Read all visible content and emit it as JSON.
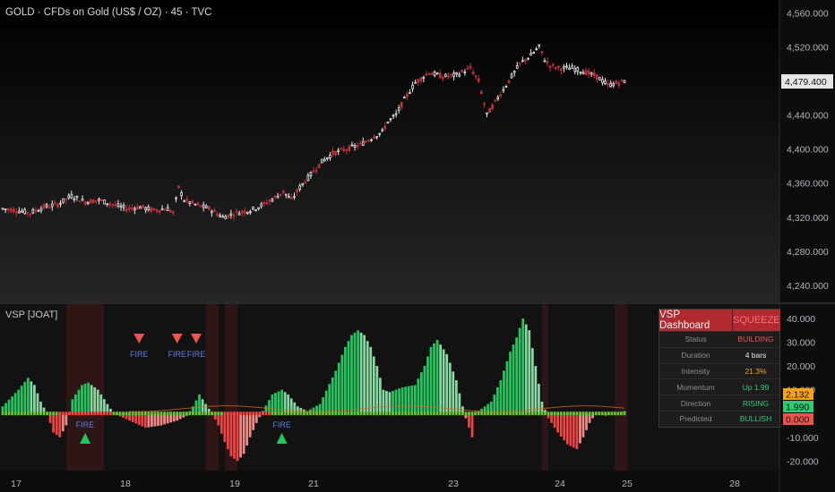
{
  "main_title": "GOLD · CFDs on Gold (US$ / OZ) · 45 · TVC",
  "indicator_title": "VSP [JOAT]",
  "colors": {
    "up": "#e8e8e8",
    "down": "#c0303a",
    "hist_pos": "#2ecc71",
    "hist_neg": "#ef5350",
    "squeeze": "#b02a2f",
    "fire_text": "#5e7be6"
  },
  "chart_data": [
    {
      "type": "candlestick",
      "title": "GOLD · CFDs on Gold (US$ / OZ) · 45 · TVC",
      "ylim": [
        4220,
        4575
      ],
      "y_ticks": [
        "4,560.000",
        "4,520.000",
        "4,479.400",
        "4,440.000",
        "4,400.000",
        "4,360.000",
        "4,320.000",
        "4,280.000",
        "4,240.000"
      ],
      "last_price": "4,479.400",
      "x_ticks": [
        "17",
        "18",
        "19",
        "21",
        "23",
        "24",
        "25",
        "28"
      ],
      "anchors": [
        [
          0,
          4330
        ],
        [
          5,
          4328
        ],
        [
          10,
          4325
        ],
        [
          15,
          4332
        ],
        [
          20,
          4335
        ],
        [
          25,
          4345
        ],
        [
          30,
          4338
        ],
        [
          35,
          4340
        ],
        [
          40,
          4335
        ],
        [
          45,
          4330
        ],
        [
          50,
          4332
        ],
        [
          55,
          4328
        ],
        [
          60,
          4330
        ],
        [
          62,
          4325
        ],
        [
          64,
          4355
        ],
        [
          66,
          4340
        ],
        [
          70,
          4335
        ],
        [
          75,
          4330
        ],
        [
          80,
          4320
        ],
        [
          85,
          4325
        ],
        [
          90,
          4328
        ],
        [
          95,
          4335
        ],
        [
          100,
          4345
        ],
        [
          102,
          4350
        ],
        [
          105,
          4340
        ],
        [
          108,
          4355
        ],
        [
          112,
          4370
        ],
        [
          116,
          4385
        ],
        [
          120,
          4395
        ],
        [
          125,
          4400
        ],
        [
          130,
          4405
        ],
        [
          135,
          4415
        ],
        [
          138,
          4420
        ],
        [
          140,
          4432
        ],
        [
          143,
          4440
        ],
        [
          146,
          4458
        ],
        [
          150,
          4478
        ],
        [
          155,
          4490
        ],
        [
          160,
          4485
        ],
        [
          165,
          4487
        ],
        [
          170,
          4495
        ],
        [
          173,
          4480
        ],
        [
          176,
          4440
        ],
        [
          180,
          4460
        ],
        [
          184,
          4480
        ],
        [
          188,
          4500
        ],
        [
          192,
          4510
        ],
        [
          195,
          4520
        ],
        [
          197,
          4505
        ],
        [
          199,
          4498
        ],
        [
          202,
          4495
        ],
        [
          207,
          4495
        ],
        [
          212,
          4490
        ],
        [
          216,
          4485
        ],
        [
          220,
          4475
        ],
        [
          224,
          4478
        ],
        [
          226,
          4480
        ]
      ],
      "n_bars": 227
    },
    {
      "type": "bar",
      "title": "VSP [JOAT]",
      "ylim": [
        -24,
        46
      ],
      "y_ticks": [
        "40.000",
        "30.000",
        "20.000",
        "10.000",
        "-10.000",
        "-20.000"
      ],
      "value_labels": [
        {
          "text": "2.132",
          "color": "#f7a21b",
          "value": 2.132
        },
        {
          "text": "1.990",
          "color": "#2ecc71",
          "value": 1.99
        },
        {
          "text": "0.000",
          "color": "#ef5350",
          "value": 0
        }
      ],
      "anchors": [
        [
          0,
          3
        ],
        [
          5,
          10
        ],
        [
          8,
          15
        ],
        [
          10,
          12
        ],
        [
          12,
          5
        ],
        [
          14,
          0
        ],
        [
          16,
          -8
        ],
        [
          18,
          -10
        ],
        [
          20,
          -5
        ],
        [
          22,
          6
        ],
        [
          25,
          12
        ],
        [
          27,
          13
        ],
        [
          30,
          10
        ],
        [
          33,
          4
        ],
        [
          35,
          0
        ],
        [
          40,
          -3
        ],
        [
          45,
          -6
        ],
        [
          50,
          -5
        ],
        [
          55,
          -3
        ],
        [
          58,
          -1
        ],
        [
          60,
          3
        ],
        [
          62,
          8
        ],
        [
          64,
          4
        ],
        [
          66,
          0
        ],
        [
          68,
          -5
        ],
        [
          70,
          -12
        ],
        [
          72,
          -18
        ],
        [
          74,
          -20
        ],
        [
          76,
          -17
        ],
        [
          78,
          -10
        ],
        [
          80,
          -4
        ],
        [
          82,
          1
        ],
        [
          85,
          8
        ],
        [
          88,
          10
        ],
        [
          90,
          8
        ],
        [
          93,
          3
        ],
        [
          96,
          1
        ],
        [
          100,
          4
        ],
        [
          105,
          18
        ],
        [
          108,
          28
        ],
        [
          110,
          33
        ],
        [
          112,
          35
        ],
        [
          114,
          33
        ],
        [
          116,
          28
        ],
        [
          118,
          20
        ],
        [
          120,
          10
        ],
        [
          122,
          9
        ],
        [
          126,
          11
        ],
        [
          130,
          12
        ],
        [
          133,
          20
        ],
        [
          135,
          28
        ],
        [
          137,
          31
        ],
        [
          140,
          25
        ],
        [
          143,
          14
        ],
        [
          145,
          3
        ],
        [
          146,
          -2
        ],
        [
          148,
          -10
        ],
        [
          149,
          0
        ],
        [
          150,
          1
        ],
        [
          154,
          5
        ],
        [
          157,
          14
        ],
        [
          160,
          26
        ],
        [
          162,
          32
        ],
        [
          164,
          40
        ],
        [
          166,
          35
        ],
        [
          168,
          20
        ],
        [
          170,
          5
        ],
        [
          172,
          -2
        ],
        [
          175,
          -8
        ],
        [
          178,
          -13
        ],
        [
          181,
          -15
        ],
        [
          183,
          -10
        ],
        [
          185,
          -4
        ],
        [
          187,
          0
        ],
        [
          190,
          -1
        ],
        [
          193,
          0
        ],
        [
          196,
          1
        ]
      ],
      "fire_down_labels": [
        "FIRE",
        "FIRE",
        "FIRE"
      ],
      "fire_up_labels": [
        "FIRE",
        "FIRE"
      ]
    }
  ],
  "dashboard": {
    "title": "VSP Dashboard",
    "state": "SQUEEZE",
    "rows": [
      {
        "k": "Status",
        "v": "BUILDING",
        "c": "#ef5350"
      },
      {
        "k": "Duration",
        "v": "4 bars",
        "c": "#e6e6e6"
      },
      {
        "k": "Intensity",
        "v": "21.3%",
        "c": "#f7a21b"
      },
      {
        "k": "Momentum",
        "v": "Up 1.99",
        "c": "#2ecc71"
      },
      {
        "k": "Direction",
        "v": "RISING",
        "c": "#2ecc71"
      },
      {
        "k": "Predicted",
        "v": "BULLISH",
        "c": "#2ecc71"
      }
    ]
  }
}
